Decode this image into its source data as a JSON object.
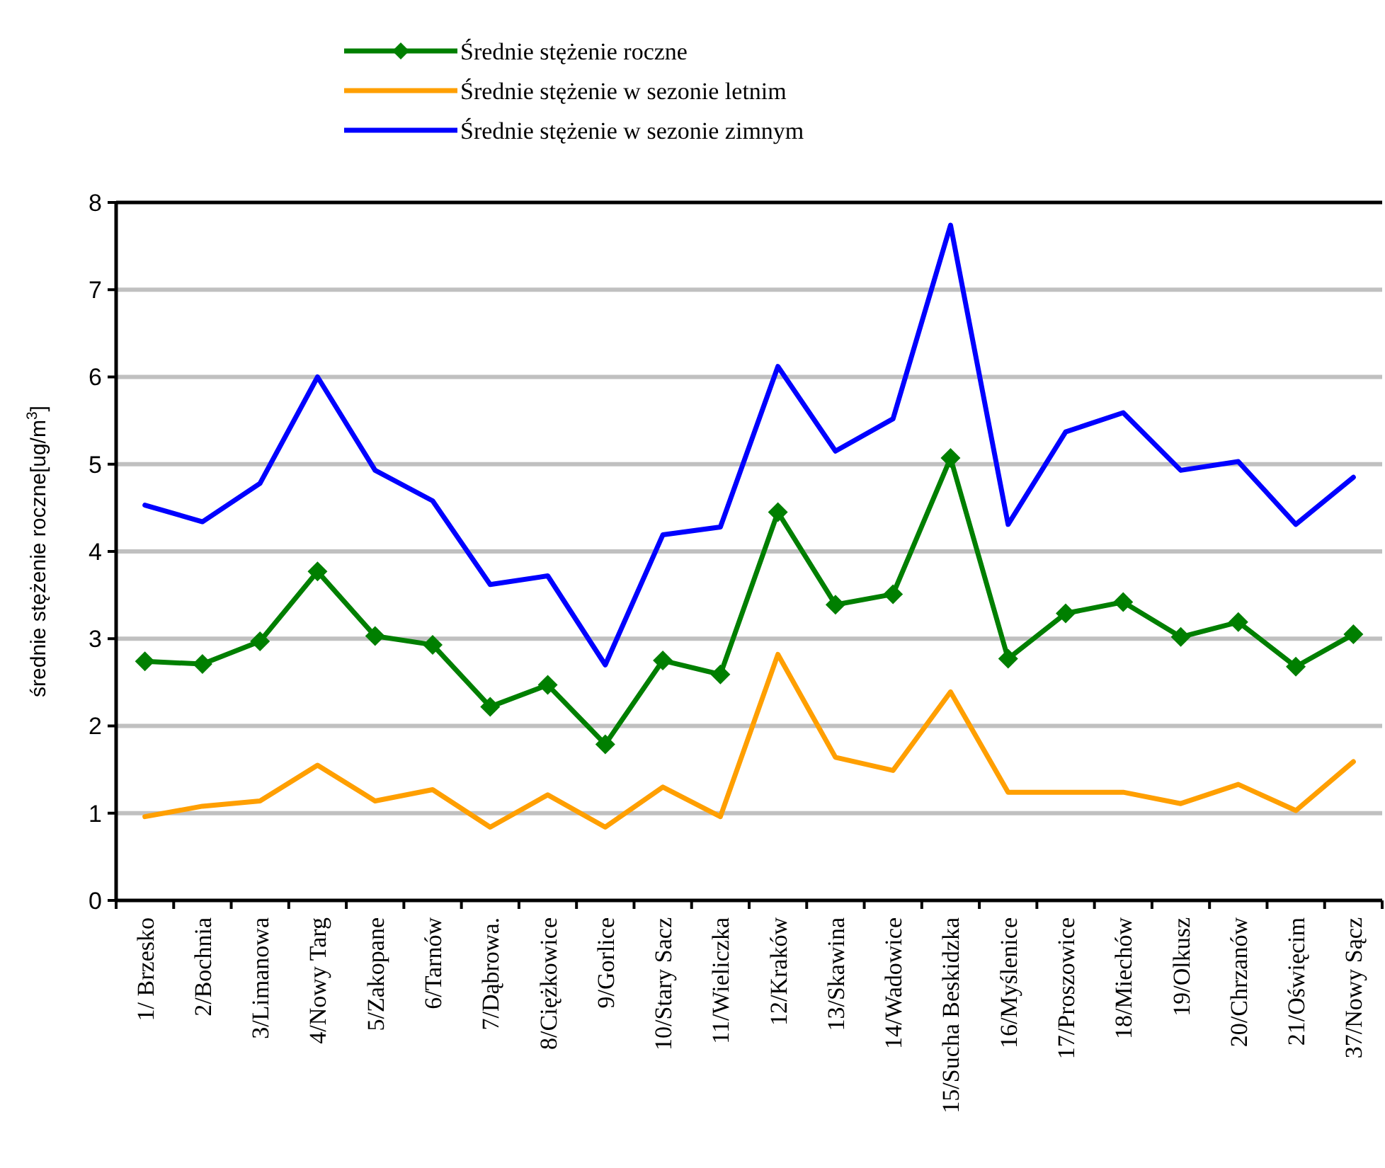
{
  "chart_data": {
    "type": "line",
    "ylabel": "średnie stężenie roczne[ug/m$^{3}$]",
    "categories": [
      "1/ Brzesko",
      "2/Bochnia",
      "3/Limanowa",
      "4/Nowy Targ",
      "5/Zakopane",
      "6/Tarnów",
      "7/Dąbrowa.",
      "8/Ciężkowice",
      "9/Gorlice",
      "10/Stary Sacz",
      "11/Wieliczka",
      "12/Kraków",
      "13/Skawina",
      "14/Wadowice",
      "15/Sucha Beskidzka",
      "16/Myślenice",
      "17/Proszowice",
      "18/Miechów",
      "19/Olkusz",
      "20/Chrzanów",
      "21/Oświęcim",
      "37/Nowy Sącz"
    ],
    "series": [
      {
        "name": "Średnie stężenie roczne",
        "color": "#007f00",
        "marker": "diamond",
        "values": [
          2.74,
          2.71,
          2.97,
          3.77,
          3.03,
          2.93,
          2.22,
          2.47,
          1.79,
          2.75,
          2.59,
          4.45,
          3.39,
          3.51,
          5.07,
          2.77,
          3.29,
          3.42,
          3.02,
          3.19,
          2.68,
          3.05
        ]
      },
      {
        "name": "Średnie stężenie w sezonie letnim",
        "color": "#ff9f00",
        "marker": "none",
        "values": [
          0.96,
          1.08,
          1.14,
          1.55,
          1.14,
          1.27,
          0.84,
          1.21,
          0.84,
          1.3,
          0.96,
          2.82,
          1.64,
          1.49,
          2.39,
          1.24,
          1.24,
          1.24,
          1.11,
          1.33,
          1.03,
          1.59
        ]
      },
      {
        "name": "Średnie stężenie w sezonie zimnym",
        "color": "#0000ff",
        "marker": "none",
        "values": [
          4.53,
          4.34,
          4.78,
          6.0,
          4.93,
          4.58,
          3.62,
          3.72,
          2.7,
          4.19,
          4.28,
          6.12,
          5.15,
          5.52,
          7.74,
          4.31,
          5.37,
          5.59,
          4.93,
          5.03,
          4.31,
          4.85
        ]
      }
    ],
    "ylim": [
      0,
      8
    ],
    "yticks": [
      0,
      1,
      2,
      3,
      4,
      5,
      6,
      7,
      8
    ],
    "grid": "y",
    "legend": "top"
  }
}
